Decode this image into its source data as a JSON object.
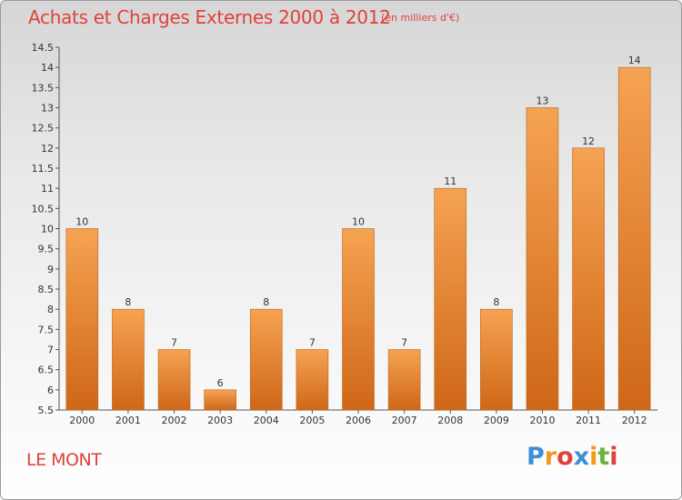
{
  "chart_data": {
    "type": "bar",
    "title": "Achats et Charges Externes 2000 à 2012",
    "subtitle": "(en milliers d'€)",
    "categories": [
      "2000",
      "2001",
      "2002",
      "2003",
      "2004",
      "2005",
      "2006",
      "2007",
      "2008",
      "2009",
      "2010",
      "2011",
      "2012"
    ],
    "values": [
      10,
      8,
      7,
      6,
      8,
      7,
      10,
      7,
      11,
      8,
      13,
      12,
      14
    ],
    "ylim": [
      5.5,
      14.5
    ],
    "yticks": [
      "5.5",
      "6",
      "6.5",
      "7",
      "7.5",
      "8",
      "8.5",
      "9",
      "9.5",
      "10",
      "10.5",
      "11",
      "11.5",
      "12",
      "12.5",
      "13",
      "13.5",
      "14",
      "14.5"
    ],
    "grid": false,
    "legend": "none",
    "bar_color": "#f0963f",
    "bar_color_dark": "#d06a1c"
  },
  "commune": "LE MONT",
  "brand": {
    "letters": [
      "P",
      "r",
      "o",
      "x",
      "i",
      "t",
      "i"
    ],
    "colors": [
      "#3b8fd6",
      "#f39a1d",
      "#e0413a",
      "#3b8fd6",
      "#f39a1d",
      "#6cb33e",
      "#e0413a"
    ]
  }
}
